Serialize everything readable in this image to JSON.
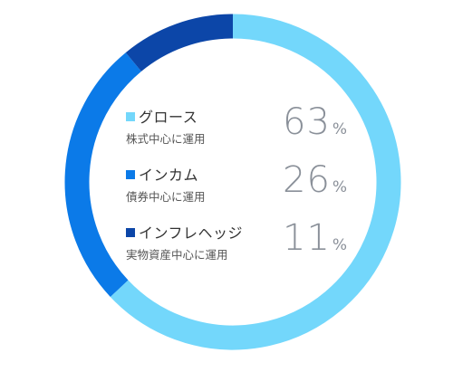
{
  "chart_data": {
    "type": "pie",
    "series": [
      {
        "name": "グロース",
        "description": "株式中心に運用",
        "value": 63,
        "unit": "%",
        "color": "#73d7fb"
      },
      {
        "name": "インカム",
        "description": "債券中心に運用",
        "value": 26,
        "unit": "%",
        "color": "#0b7ae8"
      },
      {
        "name": "インフレヘッジ",
        "description": "実物資産中心に運用",
        "value": 11,
        "unit": "%",
        "color": "#0c46a8"
      }
    ],
    "donut": true,
    "start": "top",
    "direction": "clockwise",
    "legend": "center"
  }
}
